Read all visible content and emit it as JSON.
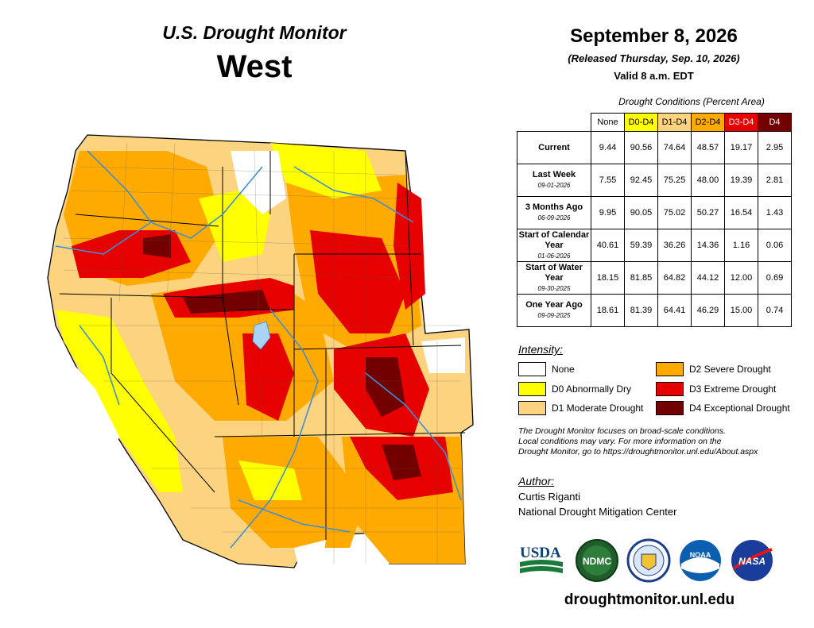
{
  "header": {
    "title": "U.S. Drought Monitor",
    "region": "West"
  },
  "info": {
    "date": "September 8, 2026",
    "released": "(Released Thursday, Sep. 10, 2026)",
    "valid": "Valid 8 a.m. EDT"
  },
  "table": {
    "caption": "Drought Conditions (Percent Area)",
    "columns": [
      "None",
      "D0-D4",
      "D1-D4",
      "D2-D4",
      "D3-D4",
      "D4"
    ],
    "rows": [
      {
        "label": "Current",
        "sub": "",
        "values": [
          "9.44",
          "90.56",
          "74.64",
          "48.57",
          "19.17",
          "2.95"
        ]
      },
      {
        "label": "Last Week",
        "sub": "09-01-2026",
        "values": [
          "7.55",
          "92.45",
          "75.25",
          "48.00",
          "19.39",
          "2.81"
        ]
      },
      {
        "label": "3 Months Ago",
        "sub": "06-09-2026",
        "values": [
          "9.95",
          "90.05",
          "75.02",
          "50.27",
          "16.54",
          "1.43"
        ]
      },
      {
        "label": "Start of Calendar Year",
        "sub": "01-06-2026",
        "values": [
          "40.61",
          "59.39",
          "36.26",
          "14.36",
          "1.16",
          "0.06"
        ]
      },
      {
        "label": "Start of Water Year",
        "sub": "09-30-2025",
        "values": [
          "18.15",
          "81.85",
          "64.82",
          "44.12",
          "12.00",
          "0.69"
        ]
      },
      {
        "label": "One Year Ago",
        "sub": "09-09-2025",
        "values": [
          "18.61",
          "81.39",
          "64.41",
          "46.29",
          "15.00",
          "0.74"
        ]
      }
    ]
  },
  "legend": {
    "title": "Intensity:",
    "items": [
      {
        "label": "None",
        "color": "#ffffff"
      },
      {
        "label": "D0 Abnormally Dry",
        "color": "#ffff00"
      },
      {
        "label": "D1 Moderate Drought",
        "color": "#fcd37f"
      },
      {
        "label": "D2 Severe Drought",
        "color": "#ffaa00"
      },
      {
        "label": "D3 Extreme Drought",
        "color": "#e60000"
      },
      {
        "label": "D4 Exceptional Drought",
        "color": "#730000"
      }
    ]
  },
  "note": {
    "line1": "The Drought Monitor focuses on broad-scale conditions.",
    "line2": "Local conditions may vary. For more information on the",
    "line3": "Drought Monitor, go to https://droughtmonitor.unl.edu/About.aspx"
  },
  "author": {
    "title": "Author:",
    "name": "Curtis Riganti",
    "org": "National Drought Mitigation Center"
  },
  "logos": {
    "usda": "USDA",
    "ndmc": "NDMC",
    "noaa": "NOAA",
    "nasa": "NASA"
  },
  "footer": {
    "url": "droughtmonitor.unl.edu"
  }
}
